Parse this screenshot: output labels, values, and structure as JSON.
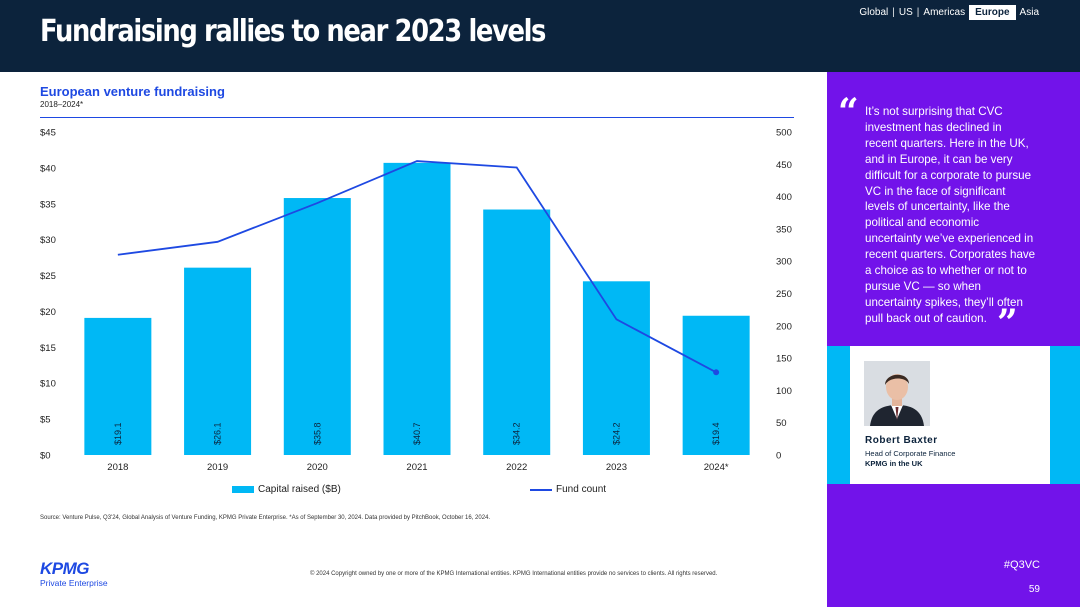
{
  "header": {
    "title": "Fundraising rallies to near 2023 levels",
    "regions": {
      "global": "Global",
      "us": "US",
      "americas": "Americas",
      "europe": "Europe",
      "asia": "Asia",
      "separator": "|"
    }
  },
  "chart_data": {
    "type": "bar",
    "title": "European venture fundraising",
    "subtitle": "2018–2024*",
    "categories": [
      "2018",
      "2019",
      "2020",
      "2021",
      "2022",
      "2023",
      "2024*"
    ],
    "series": [
      {
        "name": "Capital raised ($B)",
        "type": "bar",
        "axis": "left",
        "values": [
          19.1,
          26.1,
          35.8,
          40.7,
          34.2,
          24.2,
          19.4
        ],
        "labels": [
          "$19.1",
          "$26.1",
          "$35.8",
          "$40.7",
          "$34.2",
          "$24.2",
          "$19.4"
        ]
      },
      {
        "name": "Fund count",
        "type": "line",
        "axis": "right",
        "values": [
          310,
          330,
          390,
          455,
          445,
          210,
          128
        ]
      }
    ],
    "y_left": {
      "min": 0,
      "max": 45,
      "step": 5,
      "ticks": [
        "$0",
        "$5",
        "$10",
        "$15",
        "$20",
        "$25",
        "$30",
        "$35",
        "$40",
        "$45"
      ]
    },
    "y_right": {
      "min": 0,
      "max": 500,
      "step": 50,
      "ticks": [
        "0",
        "50",
        "100",
        "150",
        "200",
        "250",
        "300",
        "350",
        "400",
        "450",
        "500"
      ]
    },
    "legend": [
      "Capital raised ($B)",
      "Fund count"
    ],
    "colors": {
      "bar": "#00b8f5",
      "line": "#1e49e2"
    }
  },
  "source": "Source: Venture Pulse, Q3'24, Global Analysis of Venture Funding, KPMG Private Enterprise. *As of September 30, 2024. Data provided by PitchBook, October 16, 2024.",
  "footer": {
    "copyright": "© 2024 Copyright owned by one or more of the KPMG International entities. KPMG International entities provide no services to clients. All rights reserved.",
    "logo": "KPMG",
    "logo_sub": "Private Enterprise",
    "hashtag": "#Q3VC",
    "page": "59"
  },
  "quote": {
    "open_mark": "“",
    "close_mark": "”",
    "text": "It’s not surprising that CVC investment has declined in recent quarters. Here in the UK, and in Europe, it can be very difficult for a corporate to pursue VC in the face of significant levels of uncertainty, like the political and economic uncertainty we’ve experienced in recent quarters. Corporates have a choice as to whether or not to pursue VC — so when uncertainty spikes, they’ll often pull back out of caution.",
    "name": "Robert Baxter",
    "role": "Head of Corporate Finance",
    "org": "KPMG in the UK"
  },
  "colors": {
    "navy": "#0c233c",
    "blue": "#1e49e2",
    "cyan": "#00b8f5",
    "purple": "#7213ea"
  }
}
